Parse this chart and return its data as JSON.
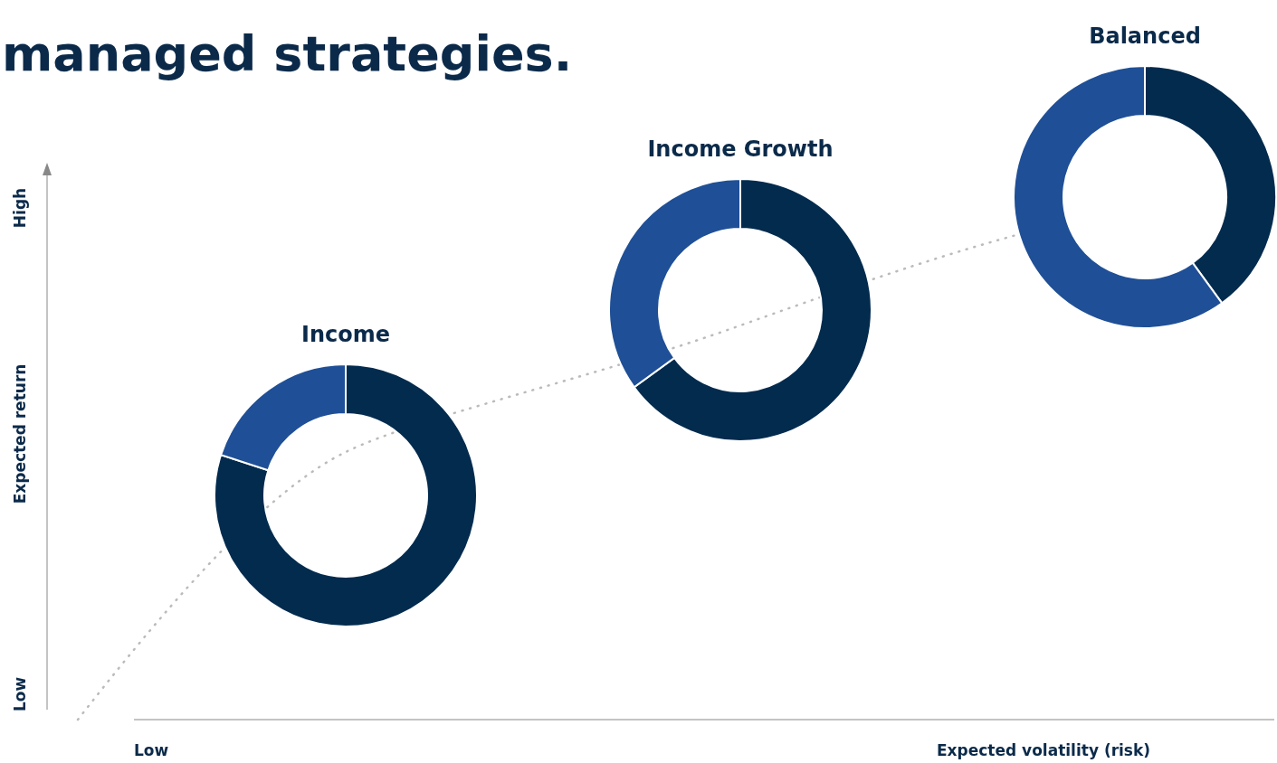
{
  "chart_data": [
    {
      "type": "other",
      "title": "managed strategies.",
      "xlabel": "Expected volatility (risk)",
      "ylabel": "Expected return",
      "annotations": [
        "Low",
        "High",
        "Low"
      ]
    },
    {
      "type": "donut",
      "title": "Income",
      "categories": [
        null,
        null
      ],
      "values": [
        80,
        20
      ],
      "colors": [
        "#022b4e",
        "#1f4f96"
      ]
    },
    {
      "type": "donut",
      "title": "Income Growth",
      "categories": [
        null,
        null
      ],
      "values": [
        65,
        35
      ],
      "colors": [
        "#022b4e",
        "#1f4f96"
      ]
    },
    {
      "type": "donut",
      "title": "Balanced",
      "categories": [
        null,
        null
      ],
      "values": [
        40,
        60
      ],
      "colors": [
        "#022b4e",
        "#1f4f96"
      ]
    }
  ]
}
